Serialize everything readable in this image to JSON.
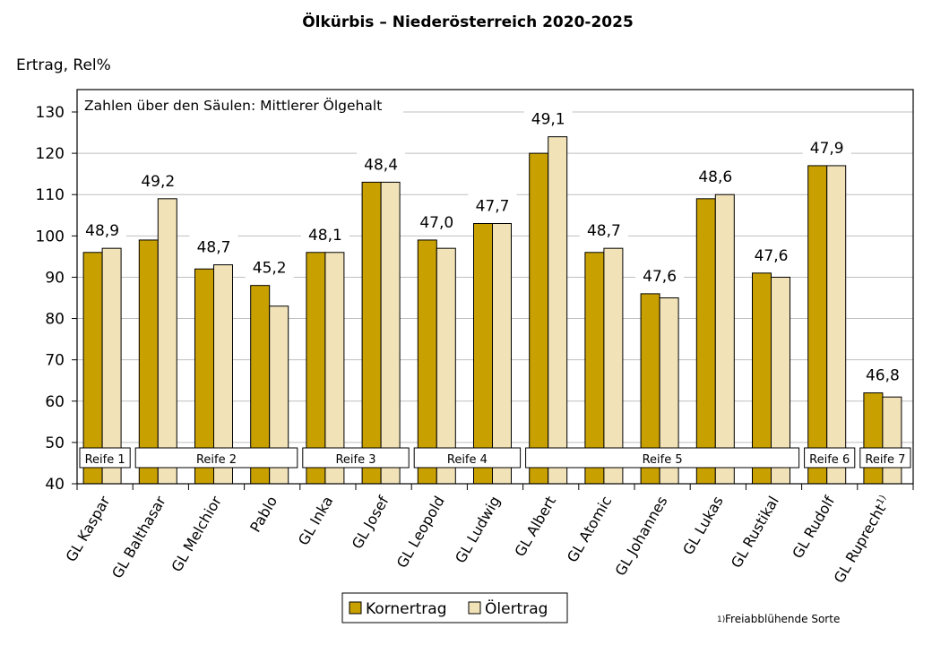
{
  "chart_data": {
    "type": "bar",
    "title": "Ölkürbis – Niederösterreich 2020-2025",
    "ylabel": "Ertrag, Rel%",
    "annotation": "Zahlen über den Säulen: Mittlerer Ölgehalt",
    "footnote": "Freiabblühende Sorte",
    "footnote_mark": "1)",
    "ylim": [
      40,
      130
    ],
    "yticks": [
      40,
      50,
      60,
      70,
      80,
      90,
      100,
      110,
      120,
      130
    ],
    "grid": true,
    "legend_position": "bottom",
    "categories": [
      "GL Kaspar",
      "GL Balthasar",
      "GL Melchior",
      "Pablo",
      "GL Inka",
      "GL Josef",
      "GL Leopold",
      "GL Ludwig",
      "GL Albert",
      "GL Atomic",
      "GL Johannes",
      "GL Lukas",
      "GL Rustikal",
      "GL Rudolf",
      "GL Ruprecht"
    ],
    "category_suffix": {
      "14": "1)"
    },
    "series": [
      {
        "name": "Kornertrag",
        "color": "#C8A000",
        "values": [
          96,
          99,
          92,
          88,
          96,
          113,
          99,
          103,
          120,
          96,
          86,
          109,
          91,
          117,
          62
        ]
      },
      {
        "name": "Ölertrag",
        "color": "#F1E2B8",
        "values": [
          97,
          109,
          93,
          83,
          96,
          113,
          97,
          103,
          124,
          97,
          85,
          110,
          90,
          117,
          61
        ]
      }
    ],
    "data_labels": [
      "48,9",
      "49,2",
      "48,7",
      "45,2",
      "48,1",
      "48,4",
      "47,0",
      "47,7",
      "49,1",
      "48,7",
      "47,6",
      "48,6",
      "47,6",
      "47,9",
      "46,8"
    ],
    "groups": [
      {
        "label": "Reife 1",
        "from": 0,
        "to": 0
      },
      {
        "label": "Reife 2",
        "from": 1,
        "to": 3
      },
      {
        "label": "Reife 3",
        "from": 4,
        "to": 5
      },
      {
        "label": "Reife 4",
        "from": 6,
        "to": 7
      },
      {
        "label": "Reife 5",
        "from": 8,
        "to": 12
      },
      {
        "label": "Reife 6",
        "from": 13,
        "to": 13
      },
      {
        "label": "Reife 7",
        "from": 14,
        "to": 14
      }
    ]
  }
}
